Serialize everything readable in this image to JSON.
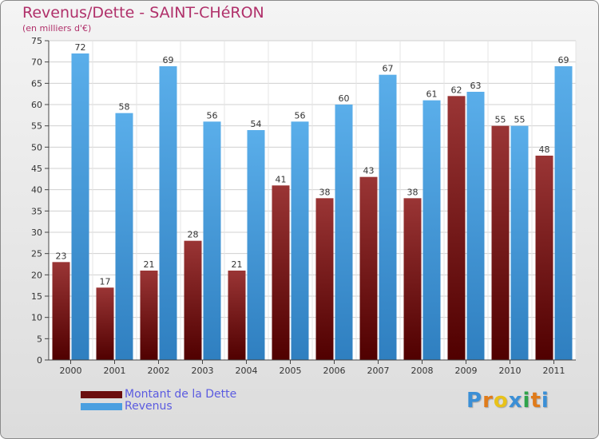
{
  "header": {
    "title": "Revenus/Dette - SAINT-CHéRON",
    "subtitle": "(en milliers d'€)"
  },
  "chart_data": {
    "type": "bar",
    "categories": [
      "2000",
      "2001",
      "2002",
      "2003",
      "2004",
      "2005",
      "2006",
      "2007",
      "2008",
      "2009",
      "2010",
      "2011"
    ],
    "series": [
      {
        "name": "Montant de la Dette",
        "values": [
          23,
          17,
          21,
          28,
          21,
          41,
          38,
          43,
          38,
          62,
          55,
          48
        ],
        "color": "#7a1a1a"
      },
      {
        "name": "Revenus",
        "values": [
          72,
          58,
          69,
          56,
          54,
          56,
          60,
          67,
          61,
          63,
          55,
          69
        ],
        "color": "#4a9fe0"
      }
    ],
    "ylim": [
      0,
      75
    ],
    "yticks": [
      0,
      5,
      10,
      15,
      20,
      25,
      30,
      35,
      40,
      45,
      50,
      55,
      60,
      65,
      70,
      75
    ],
    "grid": true,
    "legend_position": "bottom-left",
    "title": "Revenus/Dette - SAINT-CHéRON",
    "ylabel": "(en milliers d'€)",
    "xlabel": ""
  },
  "legend": {
    "items": [
      {
        "label": "Montant de la Dette",
        "color": "#6b0d0d"
      },
      {
        "label": "Revenus",
        "color": "#4a9fe0"
      }
    ]
  },
  "brand": {
    "letters": [
      "P",
      "r",
      "o",
      "x",
      "i",
      "t",
      "i"
    ],
    "colors": [
      "#3b8fd6",
      "#e07b1a",
      "#e8c21a",
      "#3b8fd6",
      "#2fa34a",
      "#e07b1a",
      "#3b8fd6"
    ]
  }
}
